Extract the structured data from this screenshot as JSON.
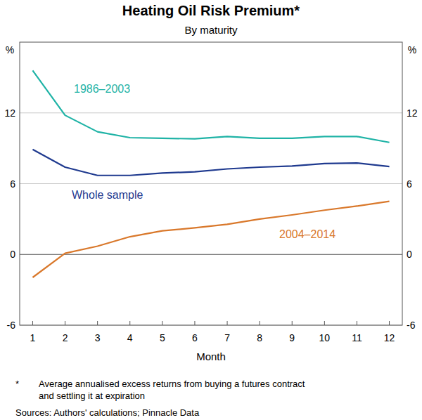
{
  "chart_data": {
    "type": "line",
    "title": "Heating Oil Risk Premium*",
    "subtitle": "By maturity",
    "y_unit": "%",
    "x_label": "Month",
    "footnote_marker": "*",
    "footnote": [
      "Average annualised excess returns from buying a futures contract",
      "and settling it at expiration"
    ],
    "sources": "Sources: Authors' calculations; Pinnacle Data",
    "x": [
      1,
      2,
      3,
      4,
      5,
      6,
      7,
      8,
      9,
      10,
      11,
      12
    ],
    "xlim": [
      0.6,
      12.4
    ],
    "xticks": [
      1,
      2,
      3,
      4,
      5,
      6,
      7,
      8,
      9,
      10,
      11,
      12
    ],
    "ylim": [
      -6,
      18
    ],
    "yticks": [
      -6,
      0,
      6,
      12
    ],
    "grid": true,
    "series": [
      {
        "name": "1986–2003",
        "color": "#1fb3a6",
        "values": [
          15.6,
          11.8,
          10.4,
          9.9,
          9.85,
          9.8,
          10.0,
          9.85,
          9.85,
          10.0,
          10.0,
          9.5
        ]
      },
      {
        "name": "Whole sample",
        "color": "#1f3a8f",
        "values": [
          8.9,
          7.4,
          6.7,
          6.7,
          6.9,
          7.0,
          7.25,
          7.4,
          7.5,
          7.7,
          7.75,
          7.45
        ]
      },
      {
        "name": "2004–2014",
        "color": "#d9782b",
        "values": [
          -1.95,
          0.1,
          0.7,
          1.5,
          2.0,
          2.25,
          2.55,
          3.0,
          3.35,
          3.75,
          4.1,
          4.5
        ]
      }
    ]
  }
}
